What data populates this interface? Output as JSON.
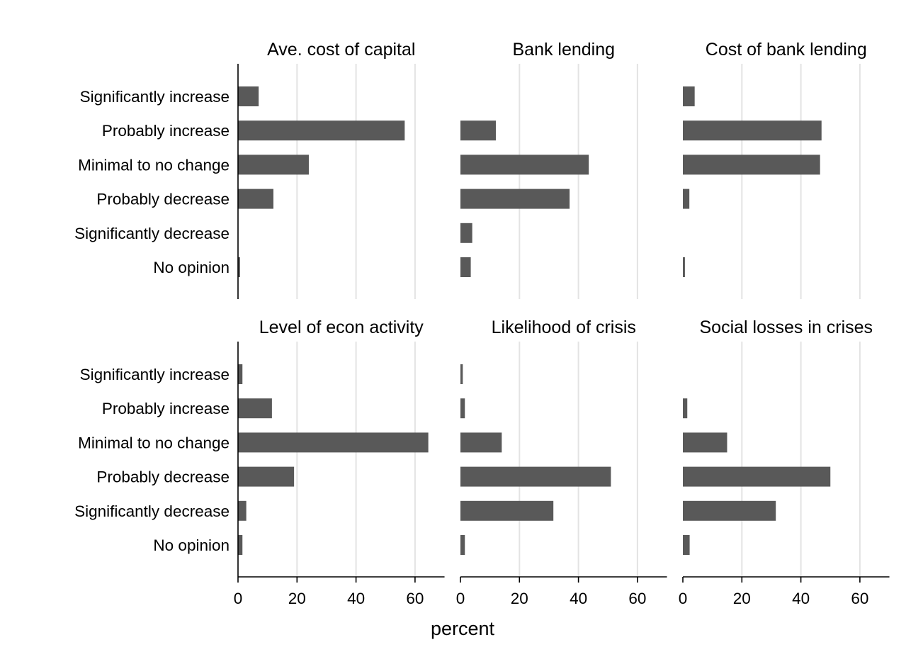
{
  "colors": {
    "bar": "#595959",
    "grid": "#e3e3e3",
    "axis": "#000000",
    "background": "#ffffff"
  },
  "chart_data": {
    "type": "bar",
    "orientation": "horizontal",
    "layout": "small-multiples, 2 rows x 3 columns, shared x axis",
    "categories": [
      "Significantly increase",
      "Probably increase",
      "Minimal to no change",
      "Probably decrease",
      "Significantly decrease",
      "No opinion"
    ],
    "xlabel": "percent",
    "xlim": [
      0,
      70
    ],
    "xticks": [
      0,
      20,
      40,
      60
    ],
    "grid": "vertical gridlines at x ticks",
    "legend": "none",
    "panels": [
      {
        "title": "Ave. cost of capital",
        "values": [
          7,
          56.5,
          24,
          12,
          0,
          0.7
        ]
      },
      {
        "title": "Bank lending",
        "values": [
          0,
          12,
          43.5,
          37,
          4,
          3.5
        ]
      },
      {
        "title": "Cost of bank lending",
        "values": [
          4,
          47,
          46.5,
          2.2,
          0,
          0.7
        ]
      },
      {
        "title": "Level of econ activity",
        "values": [
          1.5,
          11.5,
          64.5,
          19,
          2.8,
          1.5
        ]
      },
      {
        "title": "Likelihood of crisis",
        "values": [
          0.8,
          1.5,
          14,
          51,
          31.5,
          1.5
        ]
      },
      {
        "title": "Social losses in crises",
        "values": [
          0,
          1.5,
          15,
          50,
          31.5,
          2.3
        ]
      }
    ]
  }
}
